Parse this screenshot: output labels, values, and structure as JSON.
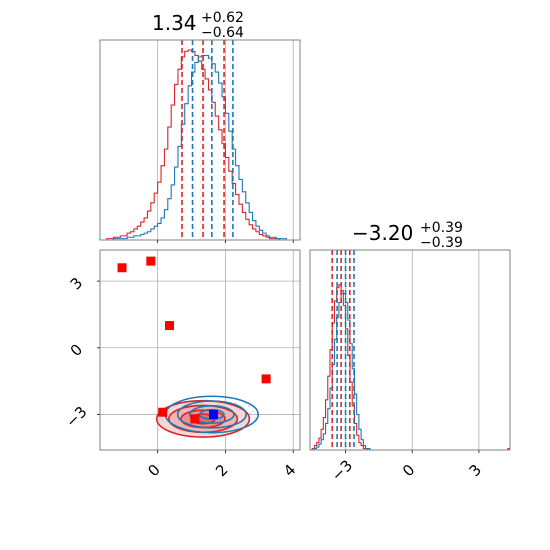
{
  "chart_data": {
    "type": "corner",
    "colors": {
      "red": "#d62728",
      "blue": "#1f77b4",
      "marker_red": "#ff0000",
      "marker_blue": "#0000ff",
      "grid": "#b0b0b0",
      "frame": "#808080"
    },
    "params": [
      {
        "median": "1.34",
        "plus": "+0.62",
        "minus": "−0.64",
        "range": [
          -1.7,
          4.2
        ],
        "ticks": [
          {
            "v": 0,
            "label": "0"
          },
          {
            "v": 2,
            "label": "2"
          },
          {
            "v": 4,
            "label": "4"
          }
        ],
        "quantiles_red": [
          0.72,
          1.34,
          1.96
        ],
        "quantiles_blue": [
          1.03,
          1.6,
          2.22
        ]
      },
      {
        "median": "−3.20",
        "plus": "+0.39",
        "minus": "−0.39",
        "range": [
          -4.6,
          4.4
        ],
        "ticks": [
          {
            "v": -3,
            "label": "−3"
          },
          {
            "v": 0,
            "label": "0"
          },
          {
            "v": 3,
            "label": "3"
          }
        ],
        "quantiles_red": [
          -3.6,
          -3.2,
          -2.81
        ],
        "quantiles_blue": [
          -3.38,
          -3.0,
          -2.62
        ]
      }
    ],
    "hist_x": {
      "bins": [
        -1.6,
        -1.5,
        -1.4,
        -1.3,
        -1.2,
        -1.1,
        -1.0,
        -0.9,
        -0.8,
        -0.7,
        -0.6,
        -0.5,
        -0.4,
        -0.3,
        -0.2,
        -0.1,
        0.0,
        0.1,
        0.2,
        0.3,
        0.4,
        0.5,
        0.6,
        0.7,
        0.8,
        0.9,
        1.0,
        1.1,
        1.2,
        1.3,
        1.4,
        1.5,
        1.6,
        1.7,
        1.8,
        1.9,
        2.0,
        2.1,
        2.2,
        2.3,
        2.4,
        2.5,
        2.6,
        2.7,
        2.8,
        2.9,
        3.0,
        3.1,
        3.2,
        3.3,
        3.4,
        3.5,
        3.6,
        3.7,
        3.8,
        3.9,
        4.0,
        4.1
      ],
      "red": [
        0,
        1,
        1,
        2,
        2,
        3,
        3,
        5,
        6,
        8,
        10,
        13,
        16,
        21,
        27,
        34,
        42,
        54,
        66,
        82,
        98,
        113,
        124,
        133,
        137,
        138,
        137,
        134,
        130,
        124,
        117,
        109,
        100,
        90,
        80,
        70,
        60,
        50,
        41,
        33,
        26,
        20,
        15,
        11,
        8,
        6,
        4,
        3,
        2,
        1,
        1,
        1,
        0,
        0,
        0,
        0,
        0,
        0
      ],
      "blue": [
        0,
        0,
        0,
        1,
        1,
        1,
        1,
        2,
        2,
        3,
        3,
        4,
        5,
        6,
        8,
        10,
        12,
        16,
        22,
        30,
        40,
        53,
        68,
        84,
        99,
        112,
        122,
        129,
        133,
        134,
        134,
        132,
        128,
        122,
        114,
        104,
        92,
        79,
        66,
        54,
        44,
        35,
        27,
        20,
        14,
        10,
        7,
        5,
        3,
        2,
        2,
        1,
        1,
        1,
        0,
        0,
        0,
        0
      ]
    },
    "hist_y": {
      "bins": [
        -4.6,
        -4.5,
        -4.4,
        -4.3,
        -4.2,
        -4.1,
        -4.0,
        -3.9,
        -3.8,
        -3.7,
        -3.6,
        -3.5,
        -3.4,
        -3.3,
        -3.2,
        -3.1,
        -3.0,
        -2.9,
        -2.8,
        -2.7,
        -2.6,
        -2.5,
        -2.4,
        -2.3,
        -2.2,
        -2.1,
        -2.0,
        -1.9,
        -1.8,
        -1.7,
        -1.6,
        -1.5,
        -1.4,
        -1.3,
        -1.2,
        -1.1,
        -1.0,
        -0.9,
        -0.8,
        -0.7,
        -0.6,
        -0.5,
        -0.4,
        -0.3,
        -0.2,
        -0.1,
        0.0,
        0.1,
        0.2,
        0.3,
        0.4,
        0.5,
        0.6,
        0.7,
        0.8,
        0.9,
        1.0,
        1.1,
        1.2,
        1.3,
        1.4,
        1.5,
        1.6,
        1.7,
        1.8,
        1.9,
        2.0,
        2.1,
        2.2,
        2.3,
        2.4,
        2.5,
        2.6,
        2.7,
        2.8,
        2.9,
        3.0,
        3.1,
        3.2,
        3.3,
        3.4,
        3.5,
        3.6,
        3.7,
        3.8,
        3.9,
        4.0,
        4.1,
        4.2,
        4.3
      ],
      "red": [
        0,
        1,
        3,
        5,
        8,
        14,
        22,
        34,
        50,
        68,
        86,
        101,
        110,
        112,
        108,
        98,
        82,
        64,
        46,
        30,
        18,
        10,
        5,
        3,
        1,
        1,
        0,
        0,
        0,
        0,
        0,
        0,
        0,
        0,
        0,
        0,
        0,
        0,
        0,
        0,
        0,
        0,
        0,
        0,
        0,
        0,
        0,
        0,
        0,
        0,
        0,
        0,
        0,
        0,
        0,
        0,
        0,
        0,
        0,
        0,
        0,
        0,
        0,
        0,
        0,
        0,
        0,
        0,
        0,
        0,
        0,
        0,
        0,
        0,
        0,
        0,
        0,
        0,
        0,
        0,
        0,
        0,
        0,
        0,
        0,
        0,
        0,
        0,
        0,
        1
      ],
      "blue": [
        0,
        0,
        1,
        2,
        4,
        7,
        11,
        18,
        28,
        42,
        58,
        75,
        90,
        100,
        106,
        106,
        100,
        88,
        72,
        55,
        38,
        24,
        14,
        7,
        3,
        1,
        1,
        0,
        0,
        0,
        0,
        0,
        0,
        0,
        0,
        0,
        0,
        0,
        0,
        0,
        0,
        0,
        0,
        0,
        0,
        0,
        0,
        0,
        0,
        0,
        0,
        0,
        0,
        0,
        0,
        0,
        0,
        0,
        0,
        0,
        0,
        0,
        0,
        0,
        0,
        0,
        0,
        0,
        0,
        0,
        0,
        0,
        0,
        0,
        0,
        0,
        0,
        0,
        0,
        0,
        0,
        0,
        0,
        0,
        0,
        0,
        0,
        0,
        0,
        0
      ]
    },
    "scatter_markers": [
      {
        "x": -1.05,
        "y": 3.6,
        "color": "red"
      },
      {
        "x": -0.2,
        "y": 3.9,
        "color": "red"
      },
      {
        "x": 0.35,
        "y": 1.0,
        "color": "red"
      },
      {
        "x": 3.2,
        "y": -1.4,
        "color": "red"
      },
      {
        "x": 0.15,
        "y": -2.9,
        "color": "red"
      },
      {
        "x": 1.1,
        "y": -3.2,
        "color": "red"
      },
      {
        "x": 1.65,
        "y": -3.0,
        "color": "blue"
      }
    ],
    "contours": {
      "red": {
        "cx": 1.34,
        "cy": -3.2,
        "sx": 0.62,
        "sy": 0.39
      },
      "blue": {
        "cx": 1.6,
        "cy": -3.0,
        "sx": 0.62,
        "sy": 0.39
      }
    },
    "xlabel": "",
    "ylabel": ""
  }
}
